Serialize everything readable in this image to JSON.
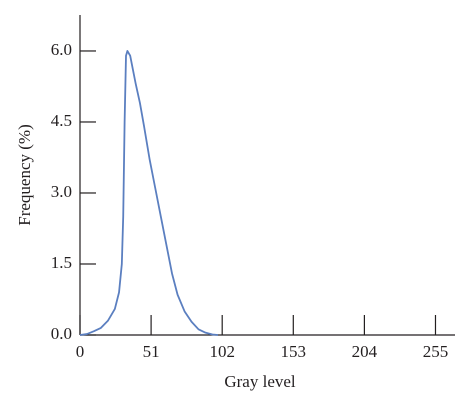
{
  "chart_data": {
    "type": "line",
    "x_label": "Gray level",
    "y_label": "Frequency (%)",
    "x": [
      0,
      5,
      10,
      15,
      20,
      25,
      28,
      30,
      31,
      32,
      33,
      34,
      36,
      38,
      40,
      43,
      46,
      50,
      54,
      58,
      62,
      66,
      70,
      75,
      80,
      85,
      90,
      95,
      99
    ],
    "series": [
      {
        "color": "#5b7fc0",
        "values": [
          0,
          0.02,
          0.08,
          0.15,
          0.3,
          0.55,
          0.9,
          1.5,
          2.5,
          4.5,
          5.9,
          6.0,
          5.9,
          5.6,
          5.3,
          4.9,
          4.4,
          3.7,
          3.1,
          2.5,
          1.9,
          1.3,
          0.85,
          0.5,
          0.28,
          0.12,
          0.05,
          0.01,
          0
        ]
      }
    ],
    "xlim": [
      0,
      269
    ],
    "ylim": [
      0,
      6.76
    ],
    "xticks": [
      0,
      51,
      102,
      153,
      204,
      255
    ],
    "yticks": [
      {
        "value": 0,
        "label": "0.0"
      },
      {
        "value": 1.5,
        "label": "1.5"
      },
      {
        "value": 3,
        "label": "3.0"
      },
      {
        "value": 4.5,
        "label": "4.5"
      },
      {
        "value": 6,
        "label": "6.0"
      }
    ]
  }
}
